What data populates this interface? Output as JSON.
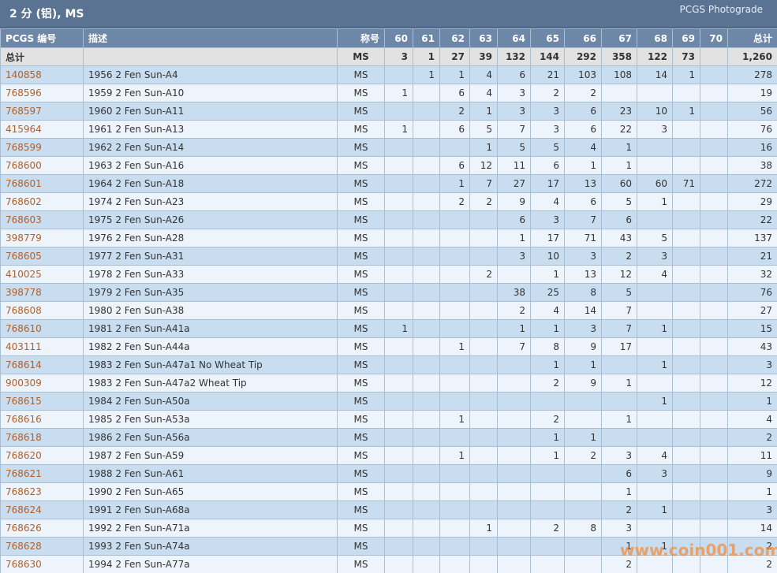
{
  "header": {
    "title": "2 分 (铝), MS",
    "link": "PCGS Photograde"
  },
  "table": {
    "columns": [
      "PCGS 编号",
      "描述",
      "称号",
      "60",
      "61",
      "62",
      "63",
      "64",
      "65",
      "66",
      "67",
      "68",
      "69",
      "70",
      "总计"
    ],
    "total_row": [
      "总计",
      null,
      "MS",
      3,
      1,
      27,
      39,
      132,
      144,
      292,
      358,
      122,
      73,
      null,
      "1,260"
    ],
    "rows": [
      [
        "140858",
        "1956 2 Fen Sun-A4",
        "MS",
        null,
        1,
        1,
        4,
        6,
        21,
        103,
        108,
        14,
        1,
        null,
        278
      ],
      [
        "768596",
        "1959 2 Fen Sun-A10",
        "MS",
        1,
        null,
        6,
        4,
        3,
        2,
        2,
        null,
        null,
        null,
        null,
        19
      ],
      [
        "768597",
        "1960 2 Fen Sun-A11",
        "MS",
        null,
        null,
        2,
        1,
        3,
        3,
        6,
        23,
        10,
        1,
        null,
        56
      ],
      [
        "415964",
        "1961 2 Fen Sun-A13",
        "MS",
        1,
        null,
        6,
        5,
        7,
        3,
        6,
        22,
        3,
        null,
        null,
        76
      ],
      [
        "768599",
        "1962 2 Fen Sun-A14",
        "MS",
        null,
        null,
        null,
        1,
        5,
        5,
        4,
        1,
        null,
        null,
        null,
        16
      ],
      [
        "768600",
        "1963 2 Fen Sun-A16",
        "MS",
        null,
        null,
        6,
        12,
        11,
        6,
        1,
        1,
        null,
        null,
        null,
        38
      ],
      [
        "768601",
        "1964 2 Fen Sun-A18",
        "MS",
        null,
        null,
        1,
        7,
        27,
        17,
        13,
        60,
        60,
        71,
        null,
        272
      ],
      [
        "768602",
        "1974 2 Fen Sun-A23",
        "MS",
        null,
        null,
        2,
        2,
        9,
        4,
        6,
        5,
        1,
        null,
        null,
        29
      ],
      [
        "768603",
        "1975 2 Fen Sun-A26",
        "MS",
        null,
        null,
        null,
        null,
        6,
        3,
        7,
        6,
        null,
        null,
        null,
        22
      ],
      [
        "398779",
        "1976 2 Fen Sun-A28",
        "MS",
        null,
        null,
        null,
        null,
        1,
        17,
        71,
        43,
        5,
        null,
        null,
        137
      ],
      [
        "768605",
        "1977 2 Fen Sun-A31",
        "MS",
        null,
        null,
        null,
        null,
        3,
        10,
        3,
        2,
        3,
        null,
        null,
        21
      ],
      [
        "410025",
        "1978 2 Fen Sun-A33",
        "MS",
        null,
        null,
        null,
        2,
        null,
        1,
        13,
        12,
        4,
        null,
        null,
        32
      ],
      [
        "398778",
        "1979 2 Fen Sun-A35",
        "MS",
        null,
        null,
        null,
        null,
        38,
        25,
        8,
        5,
        null,
        null,
        null,
        76
      ],
      [
        "768608",
        "1980 2 Fen Sun-A38",
        "MS",
        null,
        null,
        null,
        null,
        2,
        4,
        14,
        7,
        null,
        null,
        null,
        27
      ],
      [
        "768610",
        "1981 2 Fen Sun-A41a",
        "MS",
        1,
        null,
        null,
        null,
        1,
        1,
        3,
        7,
        1,
        null,
        null,
        15
      ],
      [
        "403111",
        "1982 2 Fen Sun-A44a",
        "MS",
        null,
        null,
        1,
        null,
        7,
        8,
        9,
        17,
        null,
        null,
        null,
        43
      ],
      [
        "768614",
        "1983 2 Fen Sun-A47a1 No Wheat Tip",
        "MS",
        null,
        null,
        null,
        null,
        null,
        1,
        1,
        null,
        1,
        null,
        null,
        3
      ],
      [
        "900309",
        "1983 2 Fen Sun-A47a2 Wheat Tip",
        "MS",
        null,
        null,
        null,
        null,
        null,
        2,
        9,
        1,
        null,
        null,
        null,
        12
      ],
      [
        "768615",
        "1984 2 Fen Sun-A50a",
        "MS",
        null,
        null,
        null,
        null,
        null,
        null,
        null,
        null,
        1,
        null,
        null,
        1
      ],
      [
        "768616",
        "1985 2 Fen Sun-A53a",
        "MS",
        null,
        null,
        1,
        null,
        null,
        2,
        null,
        1,
        null,
        null,
        null,
        4
      ],
      [
        "768618",
        "1986 2 Fen Sun-A56a",
        "MS",
        null,
        null,
        null,
        null,
        null,
        1,
        1,
        null,
        null,
        null,
        null,
        2
      ],
      [
        "768620",
        "1987 2 Fen Sun-A59",
        "MS",
        null,
        null,
        1,
        null,
        null,
        1,
        2,
        3,
        4,
        null,
        null,
        11
      ],
      [
        "768621",
        "1988 2 Fen Sun-A61",
        "MS",
        null,
        null,
        null,
        null,
        null,
        null,
        null,
        6,
        3,
        null,
        null,
        9
      ],
      [
        "768623",
        "1990 2 Fen Sun-A65",
        "MS",
        null,
        null,
        null,
        null,
        null,
        null,
        null,
        1,
        null,
        null,
        null,
        1
      ],
      [
        "768624",
        "1991 2 Fen Sun-A68a",
        "MS",
        null,
        null,
        null,
        null,
        null,
        null,
        null,
        2,
        1,
        null,
        null,
        3
      ],
      [
        "768626",
        "1992 2 Fen Sun-A71a",
        "MS",
        null,
        null,
        null,
        1,
        null,
        2,
        8,
        3,
        null,
        null,
        null,
        14
      ],
      [
        "768628",
        "1993 2 Fen Sun-A74a",
        "MS",
        null,
        null,
        null,
        null,
        null,
        null,
        null,
        1,
        1,
        null,
        null,
        2
      ],
      [
        "768630",
        "1994 2 Fen Sun-A77a",
        "MS",
        null,
        null,
        null,
        null,
        null,
        null,
        null,
        2,
        null,
        null,
        null,
        2
      ]
    ]
  },
  "watermark": "www.coin001.com"
}
